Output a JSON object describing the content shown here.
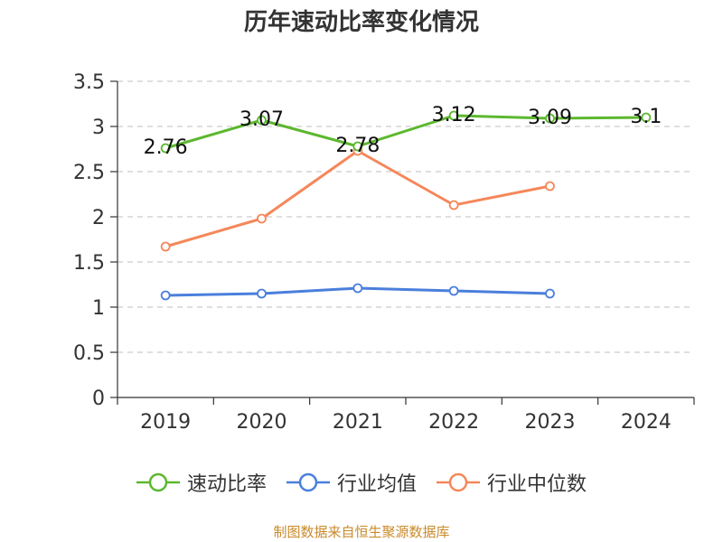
{
  "chart_data": {
    "type": "line",
    "title": "历年速动比率变化情况",
    "categories": [
      "2019",
      "2020",
      "2021",
      "2022",
      "2023",
      "2024"
    ],
    "ylim": [
      0,
      3.5
    ],
    "yticks": [
      "0",
      "0.5",
      "1",
      "1.5",
      "2",
      "2.5",
      "3",
      "3.5"
    ],
    "grid": "horizontal-dashed",
    "legend_position": "bottom-center",
    "series": [
      {
        "name": "速动比率",
        "color": "#5cb82e",
        "values": [
          2.76,
          3.07,
          2.78,
          3.12,
          3.09,
          3.1
        ],
        "labels": [
          "2.76",
          "3.07",
          "2.78",
          "3.12",
          "3.09",
          "3.1"
        ]
      },
      {
        "name": "行业均值",
        "color": "#4a7fdc",
        "values": [
          1.13,
          1.15,
          1.21,
          1.18,
          1.15,
          null
        ]
      },
      {
        "name": "行业中位数",
        "color": "#f5875a",
        "values": [
          1.67,
          1.98,
          2.73,
          2.13,
          2.34,
          null
        ]
      }
    ]
  },
  "source": "制图数据来自恒生聚源数据库"
}
